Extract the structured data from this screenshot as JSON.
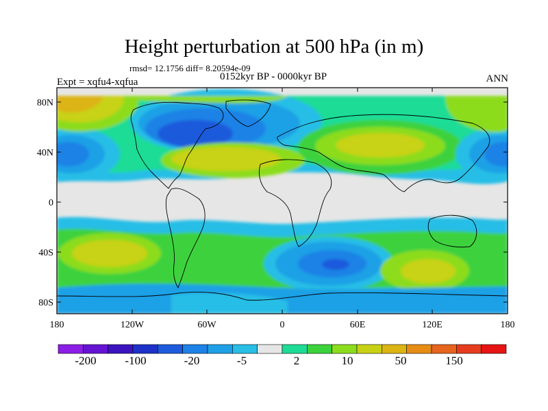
{
  "header": {
    "title": "Height perturbation at 500 hPa (in m)",
    "stats": "rmsd= 12.1756 diff= 8.20594e-09",
    "period": "0152kyr BP - 0000kyr BP",
    "experiment": "Expt = xqfu4-xqfua",
    "season": "ANN"
  },
  "map": {
    "lat_ticks": [
      "80N",
      "40N",
      "0",
      "40S",
      "80S"
    ],
    "lon_ticks": [
      "180",
      "120W",
      "60W",
      "0",
      "60E",
      "120E",
      "180"
    ]
  },
  "colorbar": {
    "colors": [
      "#8c1ee6",
      "#6414d2",
      "#3c14be",
      "#1e32c8",
      "#1e5adc",
      "#1e82e6",
      "#1ea0e6",
      "#28bee6",
      "#e6e6e6",
      "#1edc96",
      "#3cd23c",
      "#8cdc1e",
      "#c8d214",
      "#dcb414",
      "#e68c14",
      "#e6641e",
      "#e63c1e",
      "#e61414"
    ],
    "labels": [
      "-200",
      "-100",
      "-20",
      "-5",
      "2",
      "10",
      "50",
      "150"
    ]
  }
}
